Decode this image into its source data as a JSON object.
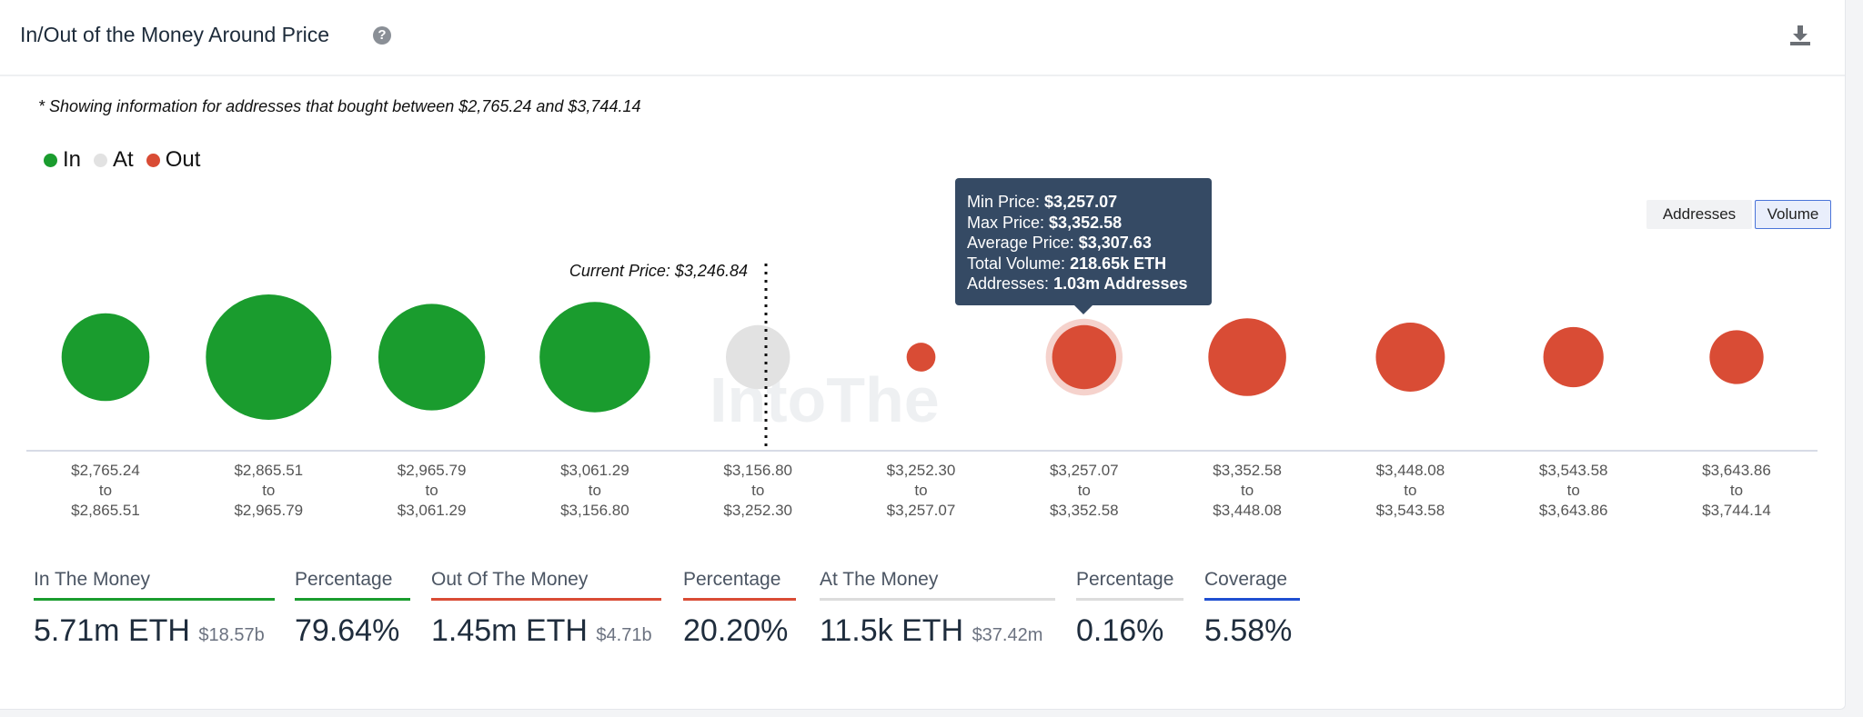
{
  "header": {
    "title": "In/Out of the Money Around Price",
    "help_icon": "question-circle-icon",
    "download_icon": "download-icon"
  },
  "note": "* Showing information for addresses that bought between $2,765.24 and $3,744.14",
  "legend": [
    {
      "label": "In",
      "color": "#1a9c2e"
    },
    {
      "label": "At",
      "color": "#e2e2e2"
    },
    {
      "label": "Out",
      "color": "#d94c35"
    }
  ],
  "toggle": {
    "addresses": "Addresses",
    "volume": "Volume",
    "selected": "Volume"
  },
  "chart_data": {
    "type": "bubble",
    "current_price_label": "Current Price: $3,246.84",
    "buckets": [
      {
        "from": "$2,765.24",
        "to": "$2,865.51",
        "status": "In",
        "relative_size": 0.7
      },
      {
        "from": "$2,865.51",
        "to": "$2,965.79",
        "status": "In",
        "relative_size": 1.0
      },
      {
        "from": "$2,965.79",
        "to": "$3,061.29",
        "status": "In",
        "relative_size": 0.85
      },
      {
        "from": "$3,061.29",
        "to": "$3,156.80",
        "status": "In",
        "relative_size": 0.88
      },
      {
        "from": "$3,156.80",
        "to": "$3,252.30",
        "status": "At",
        "relative_size": 0.51
      },
      {
        "from": "$3,252.30",
        "to": "$3,257.07",
        "status": "Out",
        "relative_size": 0.23
      },
      {
        "from": "$3,257.07",
        "to": "$3,352.58",
        "status": "Out",
        "relative_size": 0.51
      },
      {
        "from": "$3,352.58",
        "to": "$3,448.08",
        "status": "Out",
        "relative_size": 0.62
      },
      {
        "from": "$3,448.08",
        "to": "$3,543.58",
        "status": "Out",
        "relative_size": 0.55
      },
      {
        "from": "$3,543.58",
        "to": "$3,643.86",
        "status": "Out",
        "relative_size": 0.48
      },
      {
        "from": "$3,643.86",
        "to": "$3,744.14",
        "status": "Out",
        "relative_size": 0.43
      }
    ],
    "to_word": "to",
    "highlighted_index": 6
  },
  "tooltip": {
    "min_label": "Min Price:",
    "min": "$3,257.07",
    "max_label": "Max Price:",
    "max": "$3,352.58",
    "avg_label": "Average Price:",
    "avg": "$3,307.63",
    "vol_label": "Total Volume:",
    "vol": "218.65k ETH",
    "addr_label": "Addresses:",
    "addr": "1.03m Addresses"
  },
  "watermark": "IntoThe",
  "stats": [
    {
      "label": "In The Money",
      "value": "5.71m ETH",
      "sub": "$18.57b",
      "color": "#1a9c2e"
    },
    {
      "label": "Percentage",
      "value": "79.64%",
      "color": "#1a9c2e"
    },
    {
      "label": "Out Of The Money",
      "value": "1.45m ETH",
      "sub": "$4.71b",
      "color": "#d94c35"
    },
    {
      "label": "Percentage",
      "value": "20.20%",
      "color": "#d94c35"
    },
    {
      "label": "At The Money",
      "value": "11.5k ETH",
      "sub": "$37.42m",
      "color": "#dcdcdc"
    },
    {
      "label": "Percentage",
      "value": "0.16%",
      "color": "#dcdcdc"
    },
    {
      "label": "Coverage",
      "value": "5.58%",
      "color": "#1f4fd1"
    }
  ]
}
